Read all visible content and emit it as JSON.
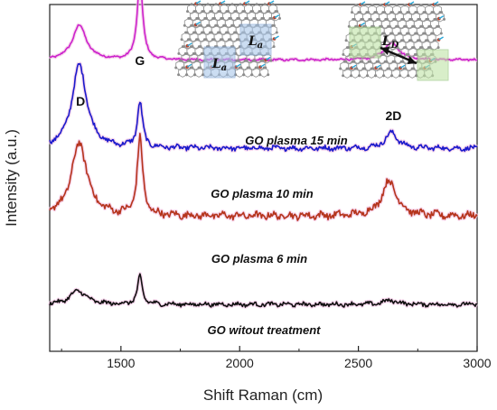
{
  "chart_data": {
    "type": "line",
    "title": "",
    "xlabel": "Shift Raman (cm)",
    "ylabel": "Intensity (a.u.)",
    "xlim": [
      1200,
      3000
    ],
    "x_ticks": [
      "1500",
      "2000",
      "2500",
      "3000"
    ],
    "y_ticks_shown": false,
    "grid": false,
    "peaks": [
      {
        "label": "D",
        "x": 1330
      },
      {
        "label": "G",
        "x": 1580
      },
      {
        "label": "2D",
        "x": 2640
      }
    ],
    "series": [
      {
        "name": "GO plasma 15 min",
        "color": "#cc22cc",
        "baseline": 0.84,
        "noise": 0.0025,
        "peaks": [
          {
            "x": 1325,
            "h": 0.1,
            "w": 35
          },
          {
            "x": 1580,
            "h": 0.23,
            "w": 14
          },
          {
            "x": 2640,
            "h": 0.05,
            "w": 38
          }
        ]
      },
      {
        "name": "GO plasma 10 min",
        "color": "#1a1acc",
        "baseline": 0.585,
        "noise": 0.006,
        "peaks": [
          {
            "x": 1325,
            "h": 0.24,
            "w": 38
          },
          {
            "x": 1580,
            "h": 0.13,
            "w": 13
          },
          {
            "x": 2640,
            "h": 0.045,
            "w": 32
          }
        ]
      },
      {
        "name": "GO plasma 6 min",
        "color": "#b5341c",
        "baseline": 0.39,
        "noise": 0.009,
        "peaks": [
          {
            "x": 1325,
            "h": 0.21,
            "w": 40
          },
          {
            "x": 1580,
            "h": 0.22,
            "w": 14
          },
          {
            "x": 2630,
            "h": 0.1,
            "w": 38
          }
        ]
      },
      {
        "name": "GO witout treatment",
        "color": "#111111",
        "baseline": 0.135,
        "noise": 0.005,
        "peaks": [
          {
            "x": 1320,
            "h": 0.04,
            "w": 40
          },
          {
            "x": 1580,
            "h": 0.08,
            "w": 12
          },
          {
            "x": 2635,
            "h": 0.012,
            "w": 35
          }
        ]
      }
    ],
    "inset_labels": [
      "L_a",
      "L_a",
      "L_D"
    ]
  }
}
